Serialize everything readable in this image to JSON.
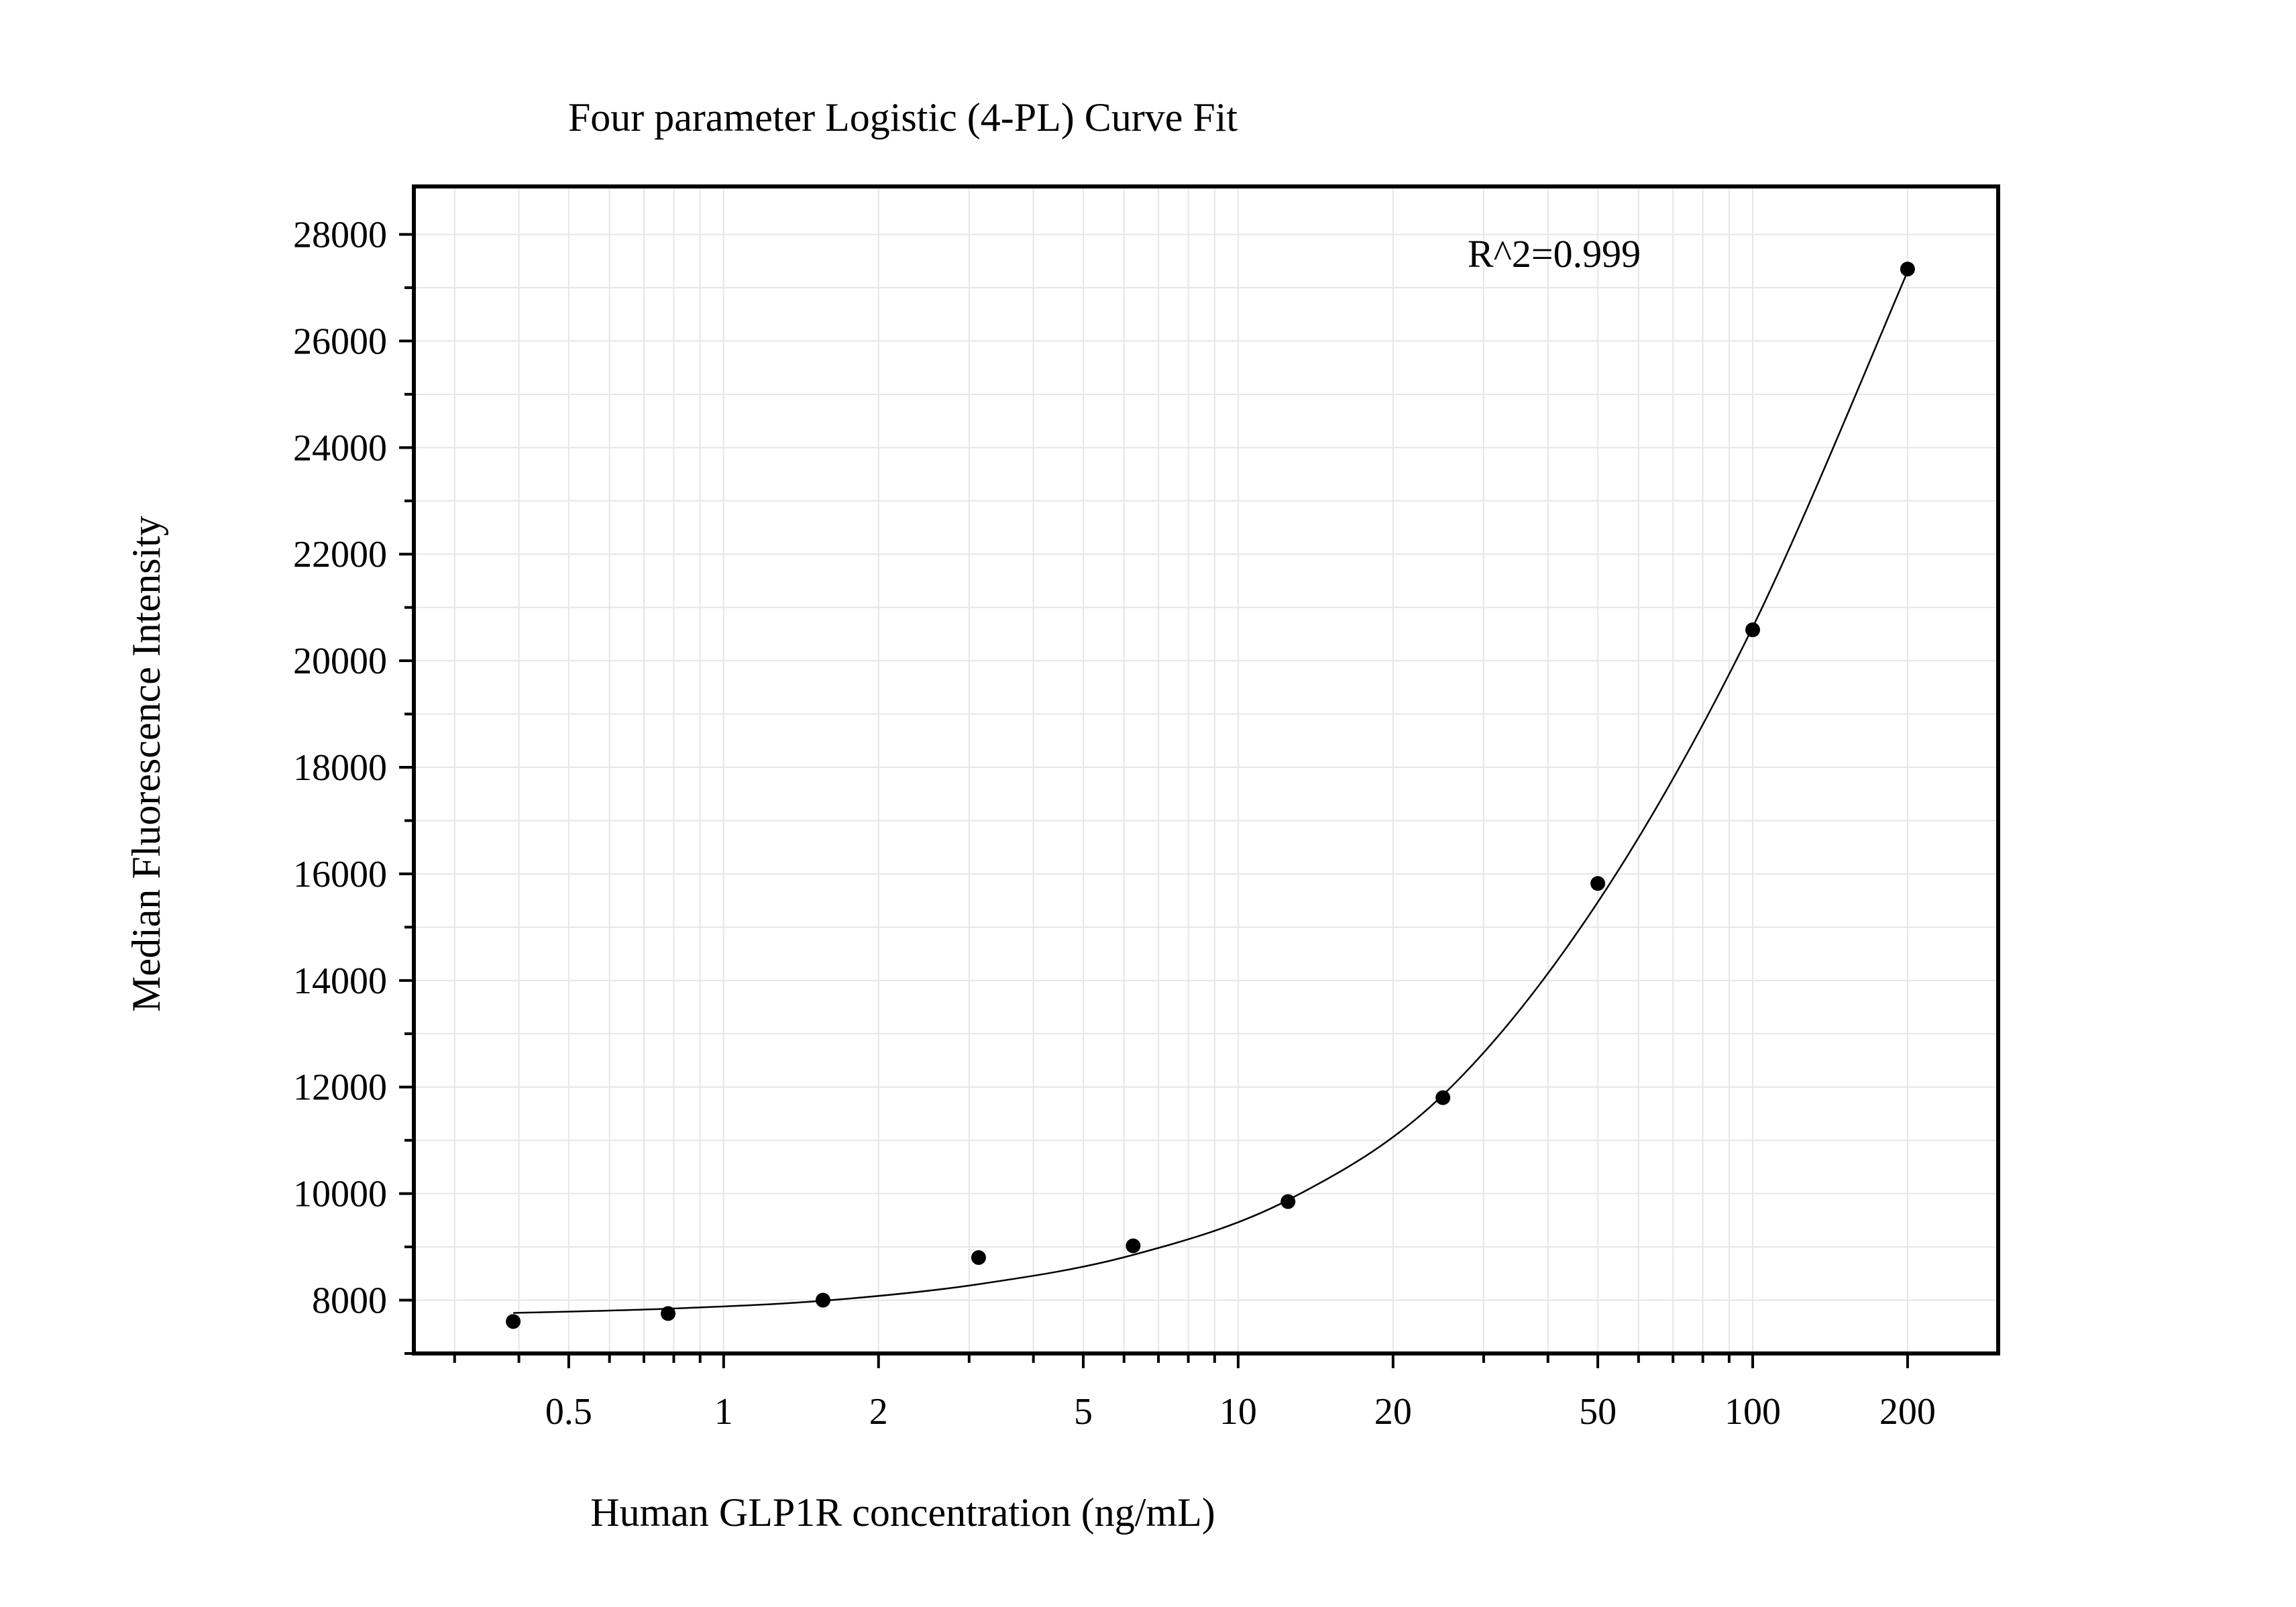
{
  "chart_data": {
    "type": "scatter",
    "title": "Four parameter Logistic (4-PL) Curve Fit",
    "xlabel": "Human GLP1R concentration (ng/mL)",
    "ylabel": "Median Fluorescence Intensity",
    "x_scale": "log",
    "xlim": [
      0.25,
      300
    ],
    "ylim": [
      7000,
      28900
    ],
    "x_ticks": [
      0.5,
      1,
      2,
      5,
      10,
      20,
      50,
      100,
      200
    ],
    "x_tick_labels": [
      "0.5",
      "1",
      "2",
      "5",
      "10",
      "20",
      "50",
      "100",
      "200"
    ],
    "y_ticks": [
      8000,
      10000,
      12000,
      14000,
      16000,
      18000,
      20000,
      22000,
      24000,
      26000,
      28000
    ],
    "y_tick_labels": [
      "8000",
      "10000",
      "12000",
      "14000",
      "16000",
      "18000",
      "20000",
      "22000",
      "24000",
      "26000",
      "28000"
    ],
    "grid": true,
    "series": [
      {
        "x": [
          0.39,
          0.78,
          1.56,
          3.13,
          6.25,
          12.5,
          25,
          50,
          100,
          200
        ],
        "y": [
          7600,
          7750,
          8000,
          8800,
          9020,
          9850,
          11800,
          15820,
          20580,
          27350
        ]
      }
    ],
    "fit": {
      "model": "4PL",
      "x": [
        0.39,
        0.78,
        1.56,
        3.13,
        6.25,
        12.5,
        25,
        50,
        100,
        200
      ],
      "y": [
        7760,
        7840,
        7990,
        8300,
        8850,
        9880,
        11850,
        15470,
        20630,
        27300
      ]
    },
    "annotation": "R^2=0.999",
    "colors": {
      "points": "#000000",
      "curve": "#000000",
      "grid": "#e6e6e6",
      "frame": "#000000"
    }
  }
}
